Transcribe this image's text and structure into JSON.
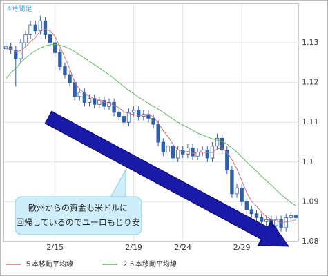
{
  "chart_data": {
    "type": "candlestick",
    "title": "4時間足",
    "annotation": [
      "欧州からの資金も米ドルに",
      "回帰しているのでユーロもじり安"
    ],
    "categories": [
      null,
      null,
      null,
      null,
      null,
      null,
      null,
      null,
      null,
      null,
      "2/15",
      null,
      null,
      null,
      null,
      null,
      null,
      null,
      null,
      null,
      null,
      null,
      null,
      null,
      null,
      null,
      "2/19",
      null,
      null,
      null,
      null,
      null,
      null,
      null,
      null,
      null,
      "2/24",
      null,
      null,
      null,
      null,
      null,
      null,
      null,
      null,
      null,
      null,
      null,
      "2/29",
      null,
      null,
      null,
      null,
      null,
      null,
      null,
      null,
      null,
      null,
      null
    ],
    "open": [
      1.1285,
      1.129,
      1.1282,
      1.126,
      1.13,
      1.132,
      1.1345,
      1.133,
      1.1355,
      1.132,
      1.13,
      1.1275,
      1.124,
      1.122,
      1.12,
      1.1165,
      1.1175,
      1.115,
      1.116,
      1.1145,
      1.1155,
      1.114,
      1.115,
      1.1125,
      1.1115,
      1.11,
      1.1125,
      1.113,
      1.1115,
      1.112,
      1.111,
      1.1095,
      1.105,
      1.1025,
      1.104,
      1.101,
      1.103,
      1.102,
      1.1035,
      1.1015,
      1.1025,
      1.103,
      1.101,
      1.104,
      1.106,
      1.103,
      1.098,
      1.092,
      1.0935,
      1.09,
      1.088,
      1.087,
      1.086,
      1.085,
      1.0855,
      1.084,
      1.0855,
      1.0835,
      1.086,
      1.0865
    ],
    "high": [
      1.13,
      1.13,
      1.1292,
      1.131,
      1.133,
      1.1355,
      1.1355,
      1.1368,
      1.1365,
      1.133,
      1.131,
      1.1285,
      1.125,
      1.123,
      1.121,
      1.1185,
      1.1185,
      1.117,
      1.117,
      1.1165,
      1.1165,
      1.116,
      1.116,
      1.1135,
      1.1125,
      1.1135,
      1.114,
      1.114,
      1.113,
      1.113,
      1.112,
      1.1105,
      1.106,
      1.105,
      1.105,
      1.104,
      1.104,
      1.1045,
      1.1045,
      1.1035,
      1.104,
      1.104,
      1.105,
      1.1072,
      1.107,
      1.104,
      1.099,
      1.0945,
      1.0945,
      1.091,
      1.089,
      1.088,
      1.087,
      1.0865,
      1.0865,
      1.0865,
      1.0865,
      1.087,
      1.0875,
      1.0875
    ],
    "low": [
      1.1275,
      1.1272,
      1.119,
      1.125,
      1.129,
      1.131,
      1.132,
      1.132,
      1.131,
      1.129,
      1.1265,
      1.123,
      1.121,
      1.119,
      1.1155,
      1.1155,
      1.114,
      1.114,
      1.1135,
      1.1135,
      1.113,
      1.113,
      1.1115,
      1.1105,
      1.109,
      1.109,
      1.1115,
      1.1105,
      1.1105,
      1.11,
      1.1085,
      1.104,
      1.1015,
      1.1015,
      1.1,
      1.1,
      1.101,
      1.101,
      1.1005,
      1.1005,
      1.1015,
      1.1,
      1.1,
      1.103,
      1.102,
      1.097,
      1.091,
      1.091,
      1.089,
      1.087,
      1.086,
      1.085,
      1.084,
      1.084,
      1.083,
      1.083,
      1.0825,
      1.0825,
      1.085,
      1.085
    ],
    "close": [
      1.129,
      1.1282,
      1.126,
      1.13,
      1.132,
      1.1345,
      1.133,
      1.1355,
      1.132,
      1.13,
      1.1275,
      1.124,
      1.122,
      1.12,
      1.1165,
      1.1175,
      1.115,
      1.116,
      1.1145,
      1.1155,
      1.114,
      1.115,
      1.1125,
      1.1115,
      1.11,
      1.1125,
      1.113,
      1.1115,
      1.112,
      1.111,
      1.1095,
      1.105,
      1.1025,
      1.104,
      1.101,
      1.103,
      1.102,
      1.1035,
      1.1015,
      1.1025,
      1.103,
      1.101,
      1.104,
      1.106,
      1.103,
      1.098,
      1.092,
      1.0935,
      1.09,
      1.088,
      1.087,
      1.086,
      1.085,
      1.0855,
      1.084,
      1.0855,
      1.0835,
      1.086,
      1.0865,
      1.086
    ],
    "up_color": "#ffffff",
    "down_color": "#2f5fa8",
    "candle_stroke": "#2f5fa8",
    "series": [
      {
        "name": "５本移動平均線",
        "color": "#d07070",
        "values": [
          1.1285,
          1.1285,
          1.1278,
          1.128,
          1.129,
          1.1303,
          1.1313,
          1.133,
          1.1334,
          1.133,
          1.1316,
          1.129,
          1.1263,
          1.1235,
          1.12,
          1.1183,
          1.1174,
          1.1165,
          1.1159,
          1.1157,
          1.115,
          1.1148,
          1.1143,
          1.1137,
          1.1126,
          1.1123,
          1.1119,
          1.1117,
          1.1118,
          1.112,
          1.1114,
          1.1098,
          1.1079,
          1.1064,
          1.1044,
          1.1031,
          1.1025,
          1.1027,
          1.1022,
          1.1025,
          1.1025,
          1.1023,
          1.1024,
          1.1033,
          1.1035,
          1.1024,
          1.1006,
          1.0983,
          1.0953,
          1.0923,
          1.0901,
          1.0889,
          1.0874,
          1.0863,
          1.0855,
          1.0852,
          1.0847,
          1.0849,
          1.0851,
          1.0855
        ]
      },
      {
        "name": "２５本移動平均線",
        "color": "#5cb85c",
        "values": [
          1.121,
          1.1225,
          1.1235,
          1.125,
          1.1262,
          1.1272,
          1.128,
          1.1287,
          1.1292,
          1.1295,
          1.1296,
          1.1294,
          1.129,
          1.1285,
          1.1278,
          1.127,
          1.1262,
          1.1253,
          1.1245,
          1.1237,
          1.1228,
          1.122,
          1.121,
          1.12,
          1.119,
          1.118,
          1.1172,
          1.1163,
          1.1155,
          1.1147,
          1.114,
          1.1133,
          1.1125,
          1.1117,
          1.1108,
          1.11,
          1.1093,
          1.1087,
          1.108,
          1.1073,
          1.1068,
          1.1063,
          1.1058,
          1.1055,
          1.1052,
          1.1045,
          1.1035,
          1.1025,
          1.1012,
          1.1,
          1.0988,
          1.0977,
          1.0965,
          1.0953,
          1.0942,
          1.093,
          1.0918,
          1.0908,
          1.0898,
          1.089
        ]
      }
    ],
    "ylim": [
      1.08,
      1.1399
    ],
    "yticks": [
      1.13,
      1.12,
      1.11,
      1.1,
      1.09,
      1.08
    ],
    "grid": true
  }
}
